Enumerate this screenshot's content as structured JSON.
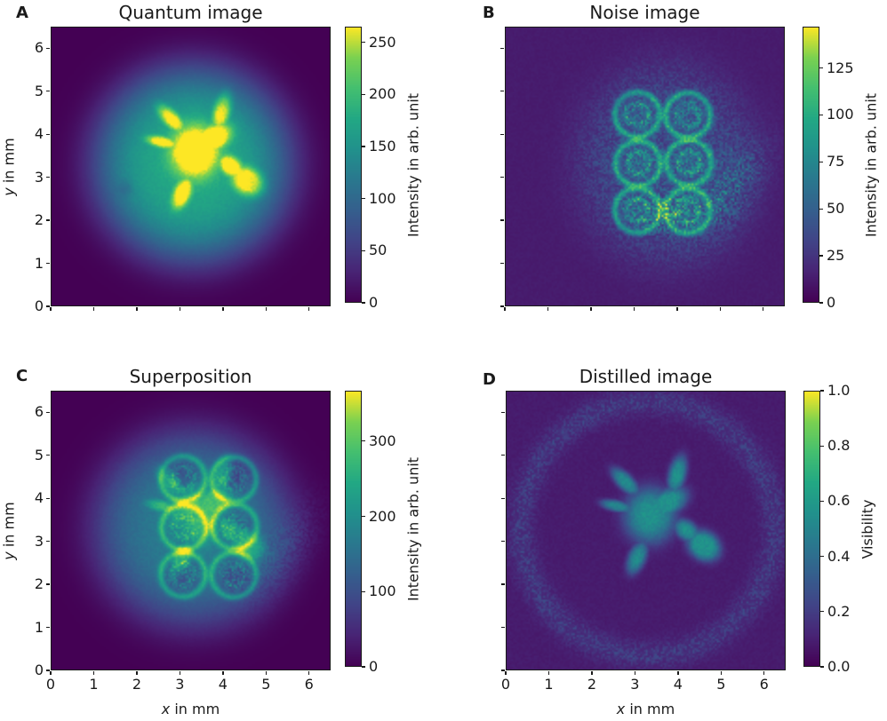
{
  "figure": {
    "background": "#ffffff",
    "text_color": "#1a1a1a"
  },
  "chart_data": {
    "type": "heatmap",
    "colormap": "viridis",
    "axes": {
      "xlim": [
        0,
        6.5
      ],
      "ylim": [
        0,
        6.5
      ],
      "tick_values": [
        0,
        1,
        2,
        3,
        4,
        5,
        6
      ],
      "x_tick_labels": [
        "0",
        "1",
        "2",
        "3",
        "4",
        "5",
        "6"
      ],
      "y_tick_labels": [
        "0",
        "1",
        "2",
        "3",
        "4",
        "5",
        "6"
      ],
      "xlabel_var": "x",
      "xlabel_rest": " in mm",
      "ylabel_var": "y",
      "ylabel_rest": " in mm"
    },
    "panels": [
      {
        "panel_label": "A",
        "title": "Quantum image",
        "scene": "quantum",
        "description": "Wide circular beam glow containing a bright turtle-shaped object",
        "colorbar": {
          "label": "Intensity in arb. unit",
          "tick_labels": [
            "0",
            "50",
            "100",
            "150",
            "200",
            "250"
          ],
          "tick_values": [
            0,
            50,
            100,
            150,
            200,
            250
          ],
          "vmax": 265
        }
      },
      {
        "panel_label": "B",
        "title": "Noise image",
        "scene": "noise",
        "description": "Speckled oval noise field with six ring structures in a 2x3 grid and a bright crescent on the right",
        "colorbar": {
          "label": "Intensity in arb. unit",
          "tick_labels": [
            "0",
            "25",
            "50",
            "75",
            "100",
            "125"
          ],
          "tick_values": [
            0,
            25,
            50,
            75,
            100,
            125
          ],
          "vmax": 147
        }
      },
      {
        "panel_label": "C",
        "title": "Superposition",
        "scene": "superposition",
        "description": "Beam glow with turtle plus overlaid ring noise pattern",
        "colorbar": {
          "label": "Intensity in arb. unit",
          "tick_labels": [
            "0",
            "100",
            "200",
            "300"
          ],
          "tick_values": [
            0,
            100,
            200,
            300
          ],
          "vmax": 367
        }
      },
      {
        "panel_label": "D",
        "title": "Distilled image",
        "scene": "distilled",
        "description": "Dark background with teal turtle silhouette and faint noisy ring near panel edge",
        "colorbar": {
          "label": "Visibility",
          "tick_labels": [
            "0.0",
            "0.2",
            "0.4",
            "0.6",
            "0.8",
            "1.0"
          ],
          "tick_values": [
            0,
            0.2,
            0.4,
            0.6,
            0.8,
            1.0
          ],
          "vmax": 1.0
        }
      }
    ],
    "scene_model": {
      "beam": {
        "cx": 3.3,
        "cy": 3.3,
        "radius": 2.25
      },
      "dark_spot": {
        "cx": 1.75,
        "cy": 2.75,
        "r": 0.18,
        "depth": 0.08
      },
      "turtle_blobs": [
        [
          3.35,
          3.6,
          0.6,
          0.65,
          0,
          1.0
        ],
        [
          3.75,
          3.9,
          0.5,
          0.3,
          29,
          1.1
        ],
        [
          4.6,
          2.9,
          0.4,
          0.32,
          -35,
          1.2
        ],
        [
          4.2,
          3.25,
          0.33,
          0.22,
          -38,
          1.0
        ],
        [
          3.98,
          4.55,
          0.2,
          0.45,
          -14,
          1.0
        ],
        [
          2.78,
          4.38,
          0.42,
          0.18,
          -45,
          0.95
        ],
        [
          2.58,
          3.82,
          0.38,
          0.13,
          -12,
          0.9
        ],
        [
          3.05,
          2.62,
          0.2,
          0.4,
          -23,
          0.95
        ]
      ],
      "rings": {
        "centers": [
          [
            3.07,
            4.46
          ],
          [
            4.25,
            4.44
          ],
          [
            3.09,
            3.32
          ],
          [
            4.27,
            3.34
          ],
          [
            3.07,
            2.23
          ],
          [
            4.25,
            2.22
          ]
        ],
        "radius": 0.52,
        "width": 0.075
      },
      "noise_envelope": {
        "cx": 3.75,
        "cy": 3.3,
        "rx": 2.05,
        "ry": 2.3
      },
      "crescent": {
        "cx": 5.35,
        "cy": 2.75,
        "rx": 0.55,
        "ry": 1.3,
        "rot": -35
      },
      "hotspot": {
        "cx": 3.7,
        "cy": 2.15,
        "rx": 0.55,
        "ry": 0.35
      },
      "edge_ring": {
        "cx": 3.3,
        "cy": 3.3,
        "radius": 2.95,
        "width": 0.3
      },
      "viridis_stops": [
        "#440154",
        "#482475",
        "#414487",
        "#355f8d",
        "#2a788e",
        "#21918c",
        "#22a884",
        "#44bf70",
        "#7ad151",
        "#fde725"
      ]
    }
  }
}
